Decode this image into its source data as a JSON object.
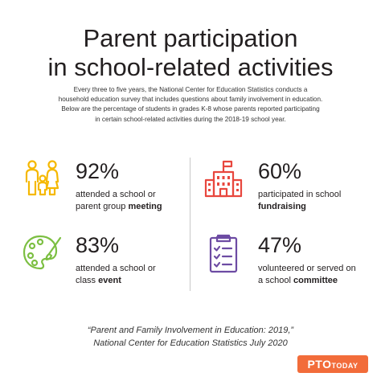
{
  "header": {
    "title_line1": "Parent participation",
    "title_line2": "in school-related activities"
  },
  "intro": {
    "line1": "Every three to five years, the National Center for Education Statistics conducts a",
    "line2": "household education survey that includes questions about family involvement in education.",
    "line3": "Below are the percentage of students in grades K-8 whose parents reported participating",
    "line4": "in certain school-related activities during the 2018-19 school year."
  },
  "stats": [
    {
      "percent": "92%",
      "line1": "attended a school or",
      "line2_plain": "parent group ",
      "line2_bold": "meeting",
      "icon": "family-icon",
      "color": "#f5b800"
    },
    {
      "percent": "60%",
      "line1": "participated in school",
      "line2_plain": "",
      "line2_bold": "fundraising",
      "icon": "school-building-icon",
      "color": "#e8473e"
    },
    {
      "percent": "83%",
      "line1": "attended a school or",
      "line2_plain": "class ",
      "line2_bold": "event",
      "icon": "palette-icon",
      "color": "#7cbf42"
    },
    {
      "percent": "47%",
      "line1": "volunteered or served on",
      "line2_plain": "a school ",
      "line2_bold": "committee",
      "icon": "clipboard-checklist-icon",
      "color": "#6d4ba3"
    }
  ],
  "citation": {
    "line1": "“Parent and Family Involvement in Education: 2019,”",
    "line2": "National Center for Education Statistics July 2020"
  },
  "logo": {
    "text": "PTO",
    "sub": "TODAY",
    "color": "#f26c3a"
  }
}
